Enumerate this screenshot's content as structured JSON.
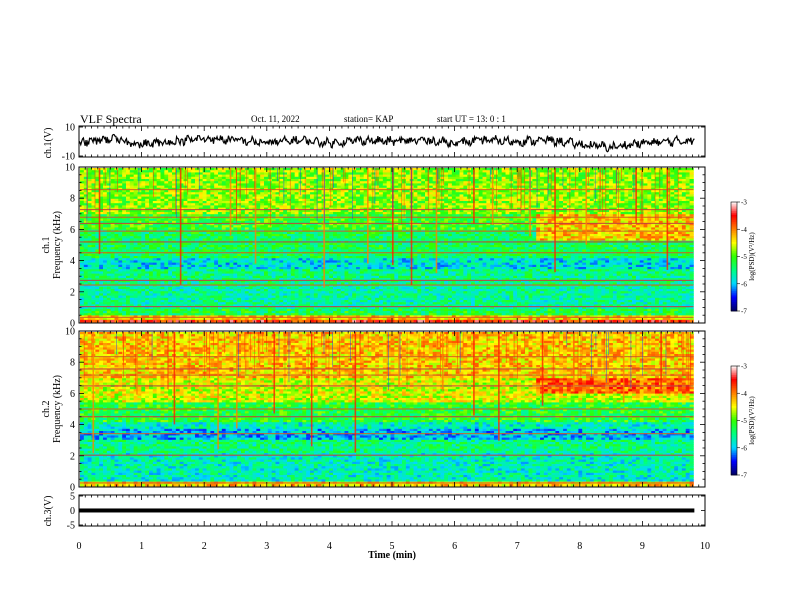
{
  "header": {
    "title": "VLF Spectra",
    "date": "Oct. 11, 2022",
    "station": "station= KAP",
    "start": "start  UT =   13: 0  : 1"
  },
  "chart_data": [
    {
      "type": "line",
      "name": "ch.1 waveform",
      "ylabel": "ch.1(V)",
      "ylim": [
        -10,
        10
      ],
      "yticks": [
        10,
        -10
      ],
      "xlim": [
        0,
        10
      ],
      "data_extent_min": [
        0,
        9.83
      ],
      "color": "#000000",
      "x_knots": [
        0,
        0.5,
        1.0,
        1.5,
        2.0,
        2.5,
        3.0,
        3.5,
        4.0,
        4.5,
        5.0,
        5.5,
        6.0,
        6.5,
        7.0,
        7.5,
        8.0,
        8.5,
        9.0,
        9.5,
        9.83
      ],
      "y_knots": [
        -1,
        2,
        -2,
        0,
        2,
        1,
        -1,
        1,
        -1,
        1,
        0,
        1,
        -1,
        1,
        0,
        1,
        -2,
        -4,
        -1,
        0,
        1
      ]
    },
    {
      "type": "heatmap",
      "name": "ch.1 spectrogram",
      "ylabel": "ch.1 Frequency (kHz)",
      "ylim": [
        0,
        10
      ],
      "yticks": [
        0,
        2,
        4,
        6,
        8,
        10
      ],
      "xlim": [
        0,
        10
      ],
      "data_extent_min": [
        0,
        9.83
      ],
      "colorbar": {
        "label": "log(PSD)(V²/Hz)",
        "range": [
          -7,
          -3
        ],
        "ticks": [
          -3,
          -4,
          -5,
          -6,
          -7
        ]
      },
      "bands_khz": [
        {
          "f": [
            0.0,
            0.2
          ],
          "lev": -3.6
        },
        {
          "f": [
            0.2,
            0.5
          ],
          "lev": -4.3
        },
        {
          "f": [
            0.5,
            0.8
          ],
          "lev": -5.3
        },
        {
          "f": [
            0.8,
            2.4
          ],
          "lev": -5.6
        },
        {
          "f": [
            2.4,
            3.4
          ],
          "lev": -5.5
        },
        {
          "f": [
            3.4,
            4.2
          ],
          "lev": -5.85
        },
        {
          "f": [
            4.2,
            6.0
          ],
          "lev": -5.35
        },
        {
          "f": [
            6.0,
            7.0
          ],
          "lev": -5.1
        },
        {
          "f": [
            7.0,
            10.0
          ],
          "lev": -4.8
        }
      ],
      "late_boost": {
        "t_start": 7.3,
        "f": [
          5.3,
          7.0
        ],
        "lev": -4.3
      },
      "lines_khz": [
        0.3,
        1.0,
        2.4,
        2.7,
        4.5,
        5.2,
        5.9,
        6.4,
        6.8,
        7.3,
        8.6
      ],
      "event_times_min": [
        0.3,
        1.6,
        2.4,
        2.8,
        3.9,
        4.6,
        5.0,
        5.3,
        5.7,
        6.3,
        6.6,
        7.2,
        7.6,
        8.1,
        8.9,
        9.4
      ]
    },
    {
      "type": "heatmap",
      "name": "ch.2 spectrogram",
      "ylabel": "ch.2 Frequency (kHz)",
      "ylim": [
        0,
        10
      ],
      "yticks": [
        0,
        2,
        4,
        6,
        8,
        10
      ],
      "xlim": [
        0,
        10
      ],
      "data_extent_min": [
        0,
        9.83
      ],
      "colorbar": {
        "label": "log(PSD)(V²/Hz)",
        "range": [
          -7,
          -3
        ],
        "ticks": [
          -3,
          -4,
          -5,
          -6,
          -7
        ]
      },
      "bands_khz": [
        {
          "f": [
            0.0,
            0.3
          ],
          "lev": -4.3
        },
        {
          "f": [
            0.3,
            2.2
          ],
          "lev": -5.7
        },
        {
          "f": [
            2.2,
            3.0
          ],
          "lev": -5.5
        },
        {
          "f": [
            3.0,
            3.7
          ],
          "lev": -6.0
        },
        {
          "f": [
            3.7,
            4.2
          ],
          "lev": -5.7
        },
        {
          "f": [
            4.2,
            5.5
          ],
          "lev": -5.2
        },
        {
          "f": [
            5.5,
            7.0
          ],
          "lev": -4.6
        },
        {
          "f": [
            7.0,
            10.0
          ],
          "lev": -4.3
        }
      ],
      "late_boost": {
        "t_start": 7.3,
        "f": [
          6.0,
          7.0
        ],
        "lev": -3.9
      },
      "lines_khz": [
        0.2,
        2.0,
        3.4,
        4.5,
        5.0,
        6.5,
        7.2,
        7.6,
        8.4
      ],
      "event_times_min": [
        0.2,
        0.9,
        1.5,
        2.2,
        2.5,
        3.1,
        3.7,
        4.4,
        5.1,
        5.8,
        6.3,
        6.7,
        7.4,
        7.9,
        8.7,
        9.3
      ]
    },
    {
      "type": "line",
      "name": "ch.3 waveform",
      "ylabel": "ch.3(V)",
      "ylim": [
        -5,
        5
      ],
      "yticks": [
        5,
        0,
        -5
      ],
      "xlim": [
        0,
        10
      ],
      "data_extent_min": [
        0,
        9.83
      ],
      "level_v": 0.2,
      "band_v": [
        -0.4,
        0.7
      ],
      "color": "#000000"
    }
  ],
  "x_axis": {
    "label": "Time  (min)",
    "ticks": [
      0,
      1,
      2,
      3,
      4,
      5,
      6,
      7,
      8,
      9,
      10
    ]
  },
  "colormap": [
    "#000060",
    "#0000ff",
    "#00d8ff",
    "#00ff80",
    "#30ff00",
    "#ffff00",
    "#ff8000",
    "#ff0000",
    "#ffffff"
  ]
}
